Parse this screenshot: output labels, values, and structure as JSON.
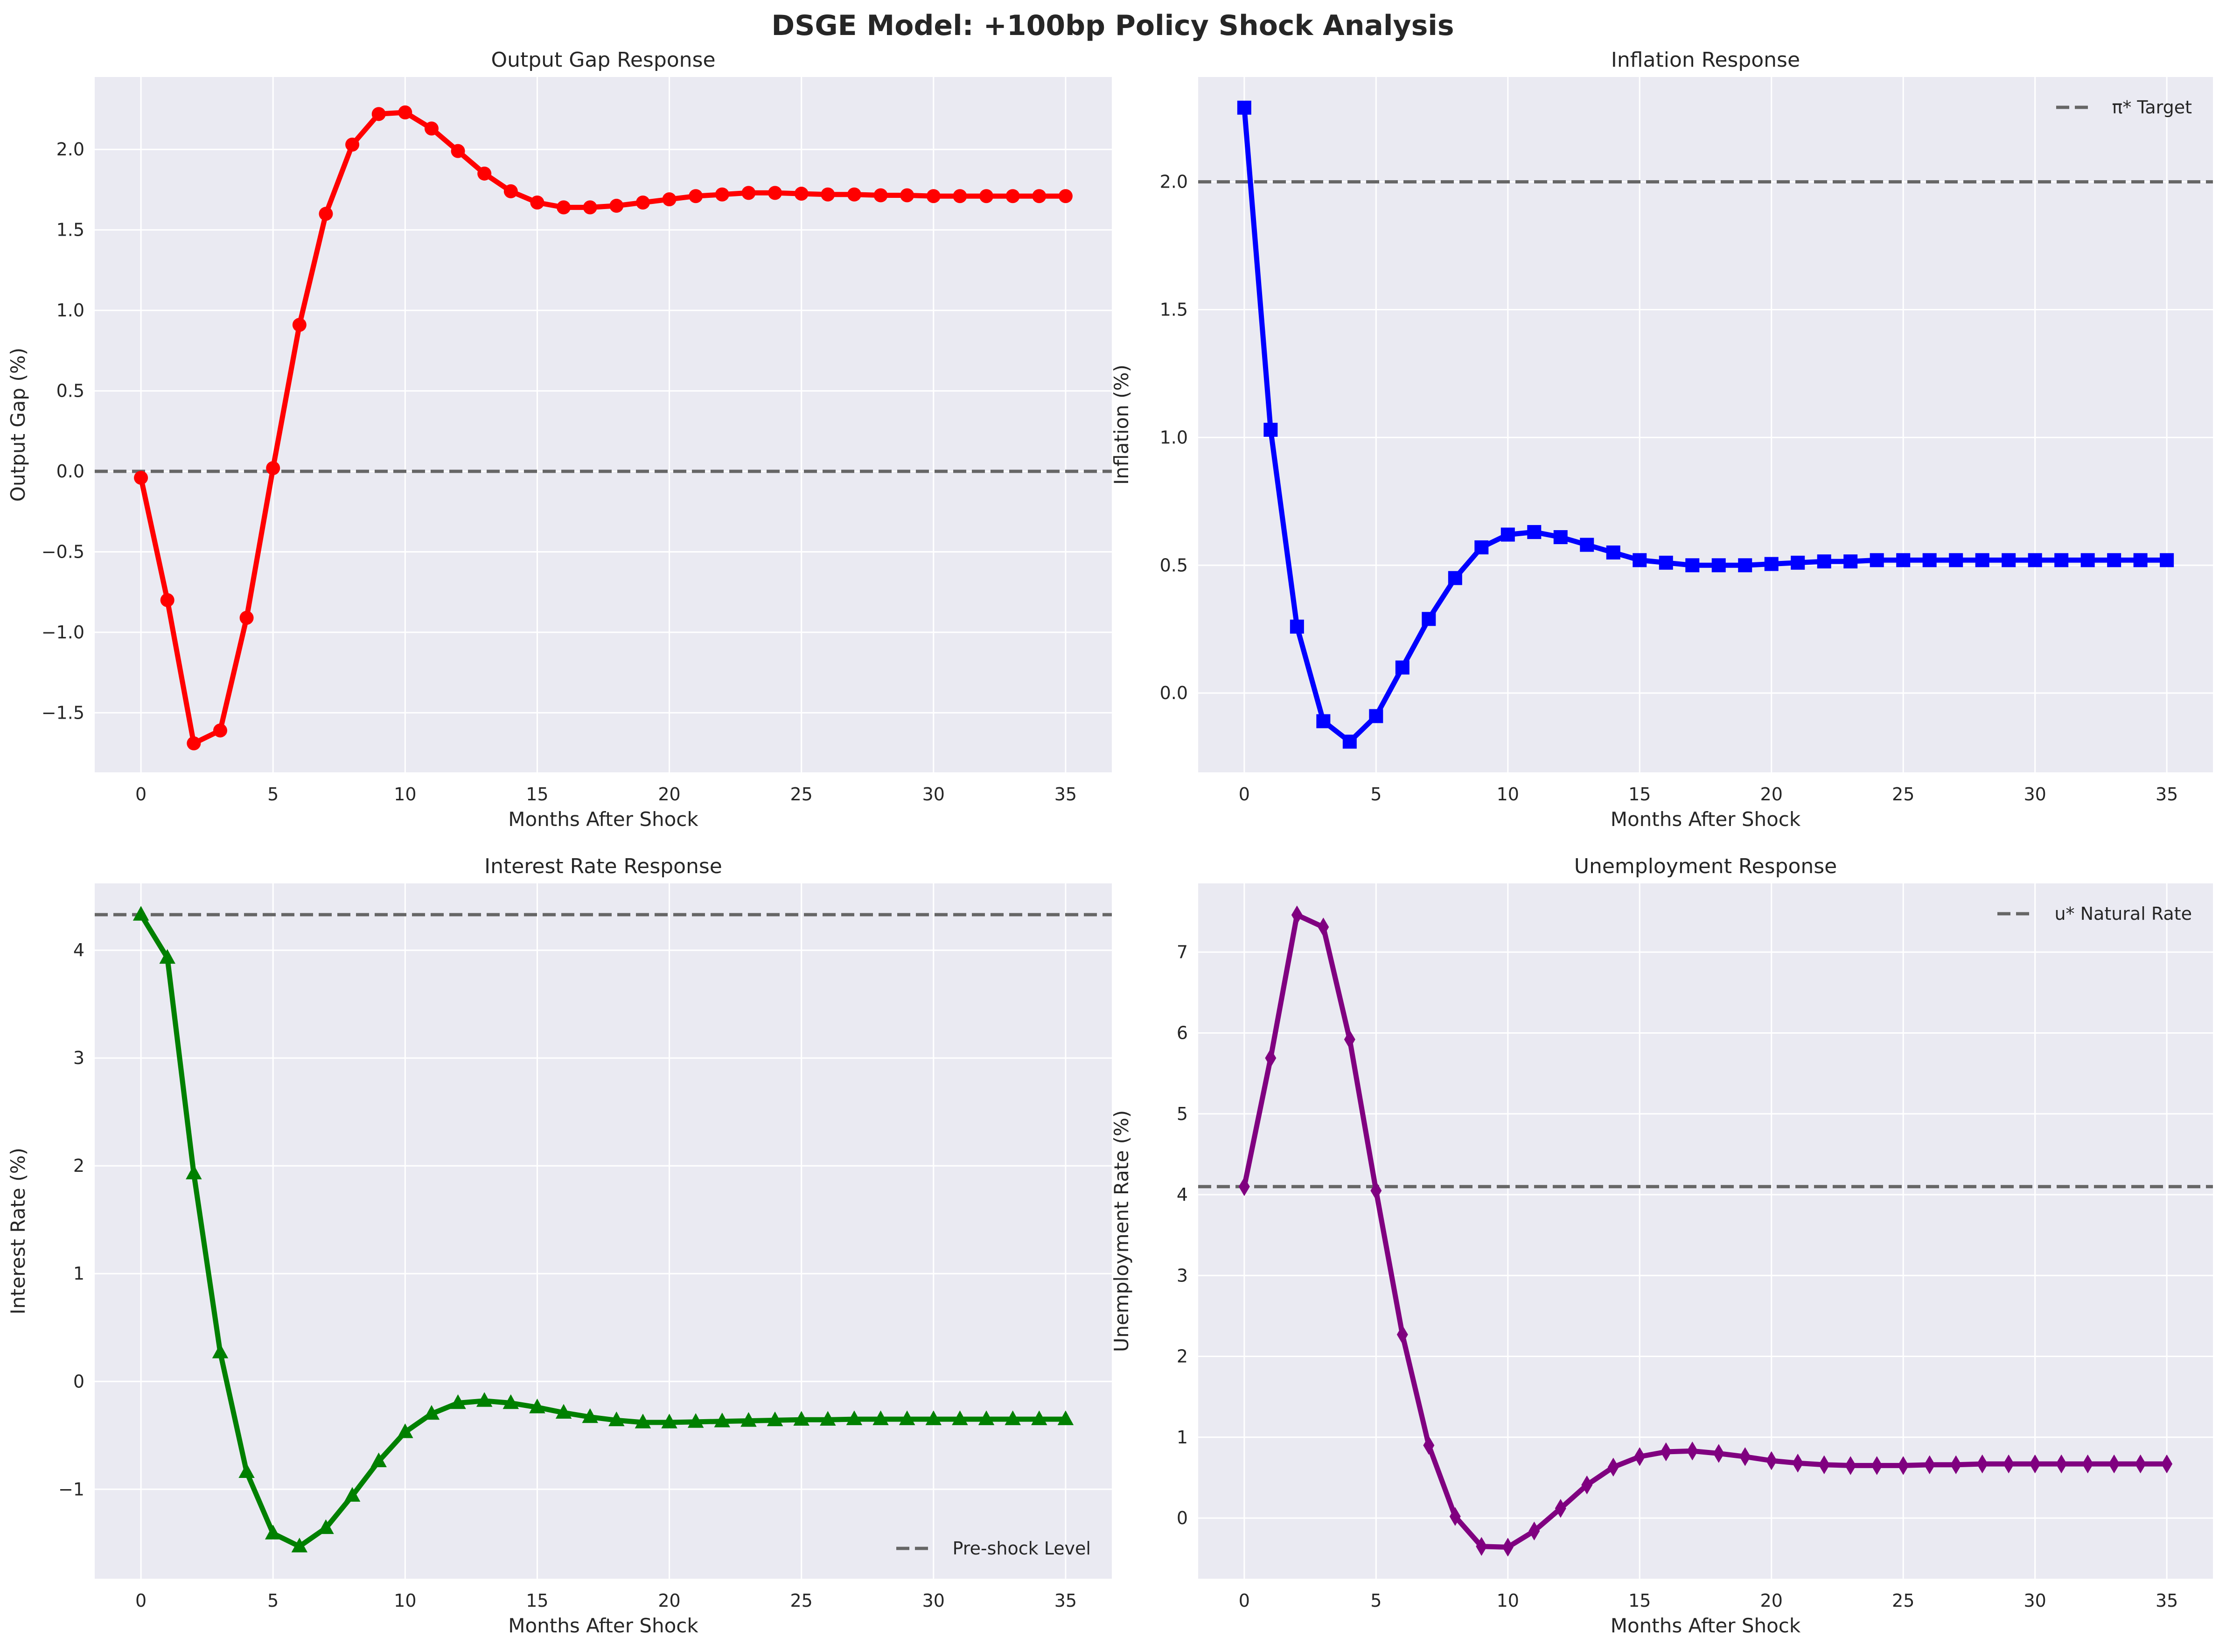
{
  "figure": {
    "suptitle": "DSGE Model: +100bp Policy Shock Analysis",
    "colors": {
      "panel_bg": "#eaeaf2",
      "grid": "#ffffff",
      "ref_line": "#666666",
      "text": "#262626"
    }
  },
  "chart_data": [
    {
      "type": "line",
      "title": "Output Gap Response",
      "xlabel": "Months After Shock",
      "ylabel": "Output Gap (%)",
      "xlim": [
        -1.75,
        36.75
      ],
      "ylim": [
        -1.87,
        2.45
      ],
      "xticks": [
        0,
        5,
        10,
        15,
        20,
        25,
        30,
        35
      ],
      "xtick_labels": [
        "0",
        "5",
        "10",
        "15",
        "20",
        "25",
        "30",
        "35"
      ],
      "yticks": [
        -1.5,
        -1.0,
        -0.5,
        0.0,
        0.5,
        1.0,
        1.5,
        2.0
      ],
      "ytick_labels": [
        "−1.5",
        "−1.0",
        "−0.5",
        "0.0",
        "0.5",
        "1.0",
        "1.5",
        "2.0"
      ],
      "grid": true,
      "series": [
        {
          "color": "#ff0000",
          "marker": "circle",
          "x": [
            0,
            1,
            2,
            3,
            4,
            5,
            6,
            7,
            8,
            9,
            10,
            11,
            12,
            13,
            14,
            15,
            16,
            17,
            18,
            19,
            20,
            21,
            22,
            23,
            24,
            25,
            26,
            27,
            28,
            29,
            30,
            31,
            32,
            33,
            34,
            35
          ],
          "y": [
            -0.04,
            -0.8,
            -1.69,
            -1.61,
            -0.91,
            0.02,
            0.91,
            1.6,
            2.03,
            2.22,
            2.23,
            2.13,
            1.99,
            1.85,
            1.74,
            1.67,
            1.64,
            1.64,
            1.65,
            1.67,
            1.69,
            1.71,
            1.72,
            1.73,
            1.73,
            1.725,
            1.72,
            1.72,
            1.715,
            1.715,
            1.71,
            1.71,
            1.71,
            1.71,
            1.71,
            1.71
          ]
        }
      ],
      "reference_line": {
        "y": 0.0,
        "style": "dashed",
        "label": ""
      },
      "legend": null
    },
    {
      "type": "line",
      "title": "Inflation Response",
      "xlabel": "Months After Shock",
      "ylabel": "Inflation (%)",
      "xlim": [
        -1.75,
        36.75
      ],
      "ylim": [
        -0.31,
        2.41
      ],
      "xticks": [
        0,
        5,
        10,
        15,
        20,
        25,
        30,
        35
      ],
      "xtick_labels": [
        "0",
        "5",
        "10",
        "15",
        "20",
        "25",
        "30",
        "35"
      ],
      "yticks": [
        0.0,
        0.5,
        1.0,
        1.5,
        2.0
      ],
      "ytick_labels": [
        "0.0",
        "0.5",
        "1.0",
        "1.5",
        "2.0"
      ],
      "grid": true,
      "series": [
        {
          "color": "#0000ff",
          "marker": "square",
          "x": [
            0,
            1,
            2,
            3,
            4,
            5,
            6,
            7,
            8,
            9,
            10,
            11,
            12,
            13,
            14,
            15,
            16,
            17,
            18,
            19,
            20,
            21,
            22,
            23,
            24,
            25,
            26,
            27,
            28,
            29,
            30,
            31,
            32,
            33,
            34,
            35
          ],
          "y": [
            2.29,
            1.03,
            0.26,
            -0.11,
            -0.19,
            -0.09,
            0.1,
            0.29,
            0.45,
            0.57,
            0.62,
            0.63,
            0.61,
            0.58,
            0.55,
            0.52,
            0.51,
            0.5,
            0.5,
            0.5,
            0.505,
            0.51,
            0.515,
            0.515,
            0.52,
            0.52,
            0.52,
            0.52,
            0.52,
            0.52,
            0.52,
            0.52,
            0.52,
            0.52,
            0.52,
            0.52
          ]
        }
      ],
      "reference_line": {
        "y": 2.0,
        "style": "dashed",
        "label": "π* Target"
      },
      "legend": {
        "placement": "upper-right",
        "entries": [
          "π* Target"
        ]
      }
    },
    {
      "type": "line",
      "title": "Interest Rate Response",
      "xlabel": "Months After Shock",
      "ylabel": "Interest Rate (%)",
      "xlim": [
        -1.75,
        36.75
      ],
      "ylim": [
        -1.83,
        4.62
      ],
      "xticks": [
        0,
        5,
        10,
        15,
        20,
        25,
        30,
        35
      ],
      "xtick_labels": [
        "0",
        "5",
        "10",
        "15",
        "20",
        "25",
        "30",
        "35"
      ],
      "yticks": [
        -1,
        0,
        1,
        2,
        3,
        4
      ],
      "ytick_labels": [
        "−1",
        "0",
        "1",
        "2",
        "3",
        "4"
      ],
      "grid": true,
      "series": [
        {
          "color": "#008000",
          "marker": "triangle",
          "x": [
            0,
            1,
            2,
            3,
            4,
            5,
            6,
            7,
            8,
            9,
            10,
            11,
            12,
            13,
            14,
            15,
            16,
            17,
            18,
            19,
            20,
            21,
            22,
            23,
            24,
            25,
            26,
            27,
            28,
            29,
            30,
            31,
            32,
            33,
            34,
            35
          ],
          "y": [
            4.33,
            3.93,
            1.93,
            0.27,
            -0.84,
            -1.41,
            -1.53,
            -1.36,
            -1.06,
            -0.74,
            -0.47,
            -0.3,
            -0.2,
            -0.18,
            -0.2,
            -0.24,
            -0.29,
            -0.33,
            -0.36,
            -0.38,
            -0.38,
            -0.375,
            -0.37,
            -0.365,
            -0.36,
            -0.355,
            -0.355,
            -0.35,
            -0.35,
            -0.35,
            -0.35,
            -0.35,
            -0.35,
            -0.35,
            -0.35,
            -0.35
          ]
        }
      ],
      "reference_line": {
        "y": 4.33,
        "style": "dashed",
        "label": "Pre-shock Level"
      },
      "legend": {
        "placement": "lower-right",
        "entries": [
          "Pre-shock Level"
        ]
      }
    },
    {
      "type": "line",
      "title": "Unemployment Response",
      "xlabel": "Months After Shock",
      "ylabel": "Unemployment Rate (%)",
      "xlim": [
        -1.75,
        36.75
      ],
      "ylim": [
        -0.75,
        7.85
      ],
      "xticks": [
        0,
        5,
        10,
        15,
        20,
        25,
        30,
        35
      ],
      "xtick_labels": [
        "0",
        "5",
        "10",
        "15",
        "20",
        "25",
        "30",
        "35"
      ],
      "yticks": [
        0,
        1,
        2,
        3,
        4,
        5,
        6,
        7
      ],
      "ytick_labels": [
        "0",
        "1",
        "2",
        "3",
        "4",
        "5",
        "6",
        "7"
      ],
      "grid": true,
      "series": [
        {
          "color": "#800080",
          "marker": "diamond",
          "x": [
            0,
            1,
            2,
            3,
            4,
            5,
            6,
            7,
            8,
            9,
            10,
            11,
            12,
            13,
            14,
            15,
            16,
            17,
            18,
            19,
            20,
            21,
            22,
            23,
            24,
            25,
            26,
            27,
            28,
            29,
            30,
            31,
            32,
            33,
            34,
            35
          ],
          "y": [
            4.1,
            5.69,
            7.46,
            7.31,
            5.92,
            4.05,
            2.27,
            0.9,
            0.02,
            -0.35,
            -0.36,
            -0.16,
            0.12,
            0.41,
            0.63,
            0.76,
            0.82,
            0.83,
            0.8,
            0.76,
            0.71,
            0.68,
            0.66,
            0.65,
            0.65,
            0.65,
            0.66,
            0.66,
            0.67,
            0.67,
            0.67,
            0.67,
            0.67,
            0.67,
            0.67,
            0.67
          ]
        }
      ],
      "reference_line": {
        "y": 4.1,
        "style": "dashed",
        "label": "u* Natural Rate"
      },
      "legend": {
        "placement": "upper-right",
        "entries": [
          "u* Natural Rate"
        ]
      }
    }
  ]
}
